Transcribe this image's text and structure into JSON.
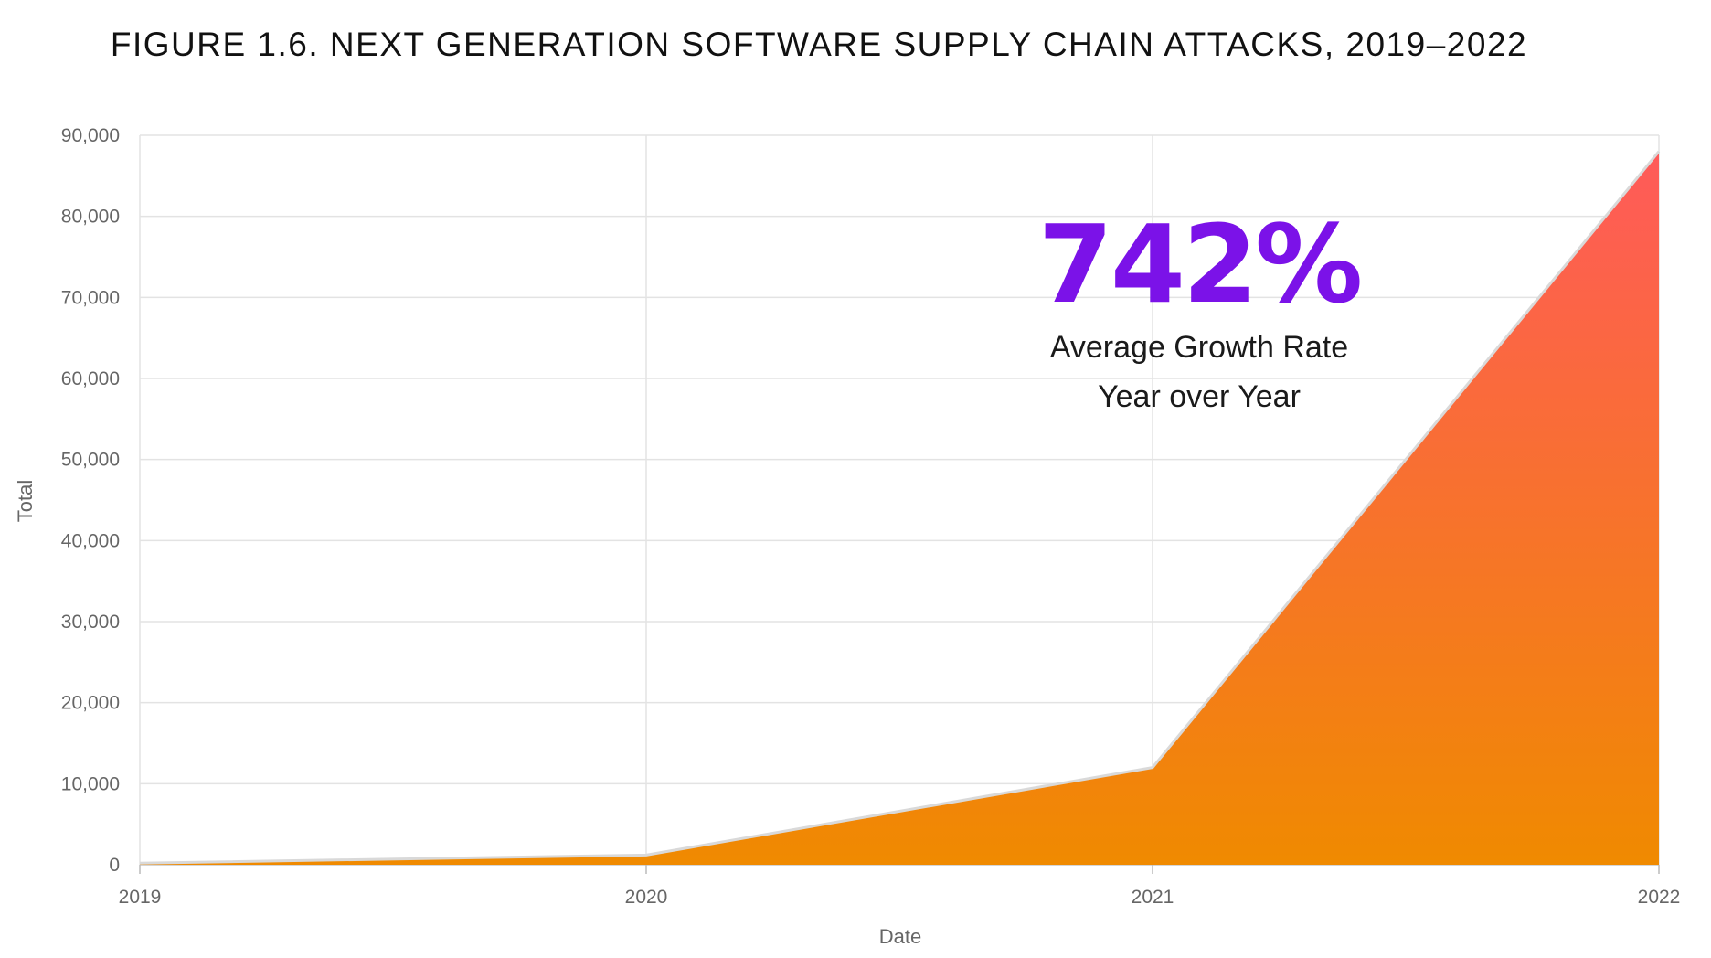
{
  "chart_data": {
    "type": "area",
    "title": "FIGURE 1.6. NEXT GENERATION SOFTWARE SUPPLY CHAIN ATTACKS, 2019–2022",
    "xlabel": "Date",
    "ylabel": "Total",
    "categories": [
      "2019",
      "2020",
      "2021",
      "2022"
    ],
    "values": [
      200,
      1200,
      12000,
      88000
    ],
    "ylim": [
      0,
      90000
    ],
    "yticks": [
      "0",
      "10,000",
      "20,000",
      "30,000",
      "40,000",
      "50,000",
      "60,000",
      "70,000",
      "80,000",
      "90,000"
    ],
    "grid": true,
    "legend": "none",
    "fill_gradient": {
      "top": "#ff5a5a",
      "bottom": "#f08a00"
    },
    "annotation": {
      "value": "742%",
      "line1": "Average Growth Rate",
      "line2": "Year over Year",
      "color": "#7b12e8"
    }
  }
}
